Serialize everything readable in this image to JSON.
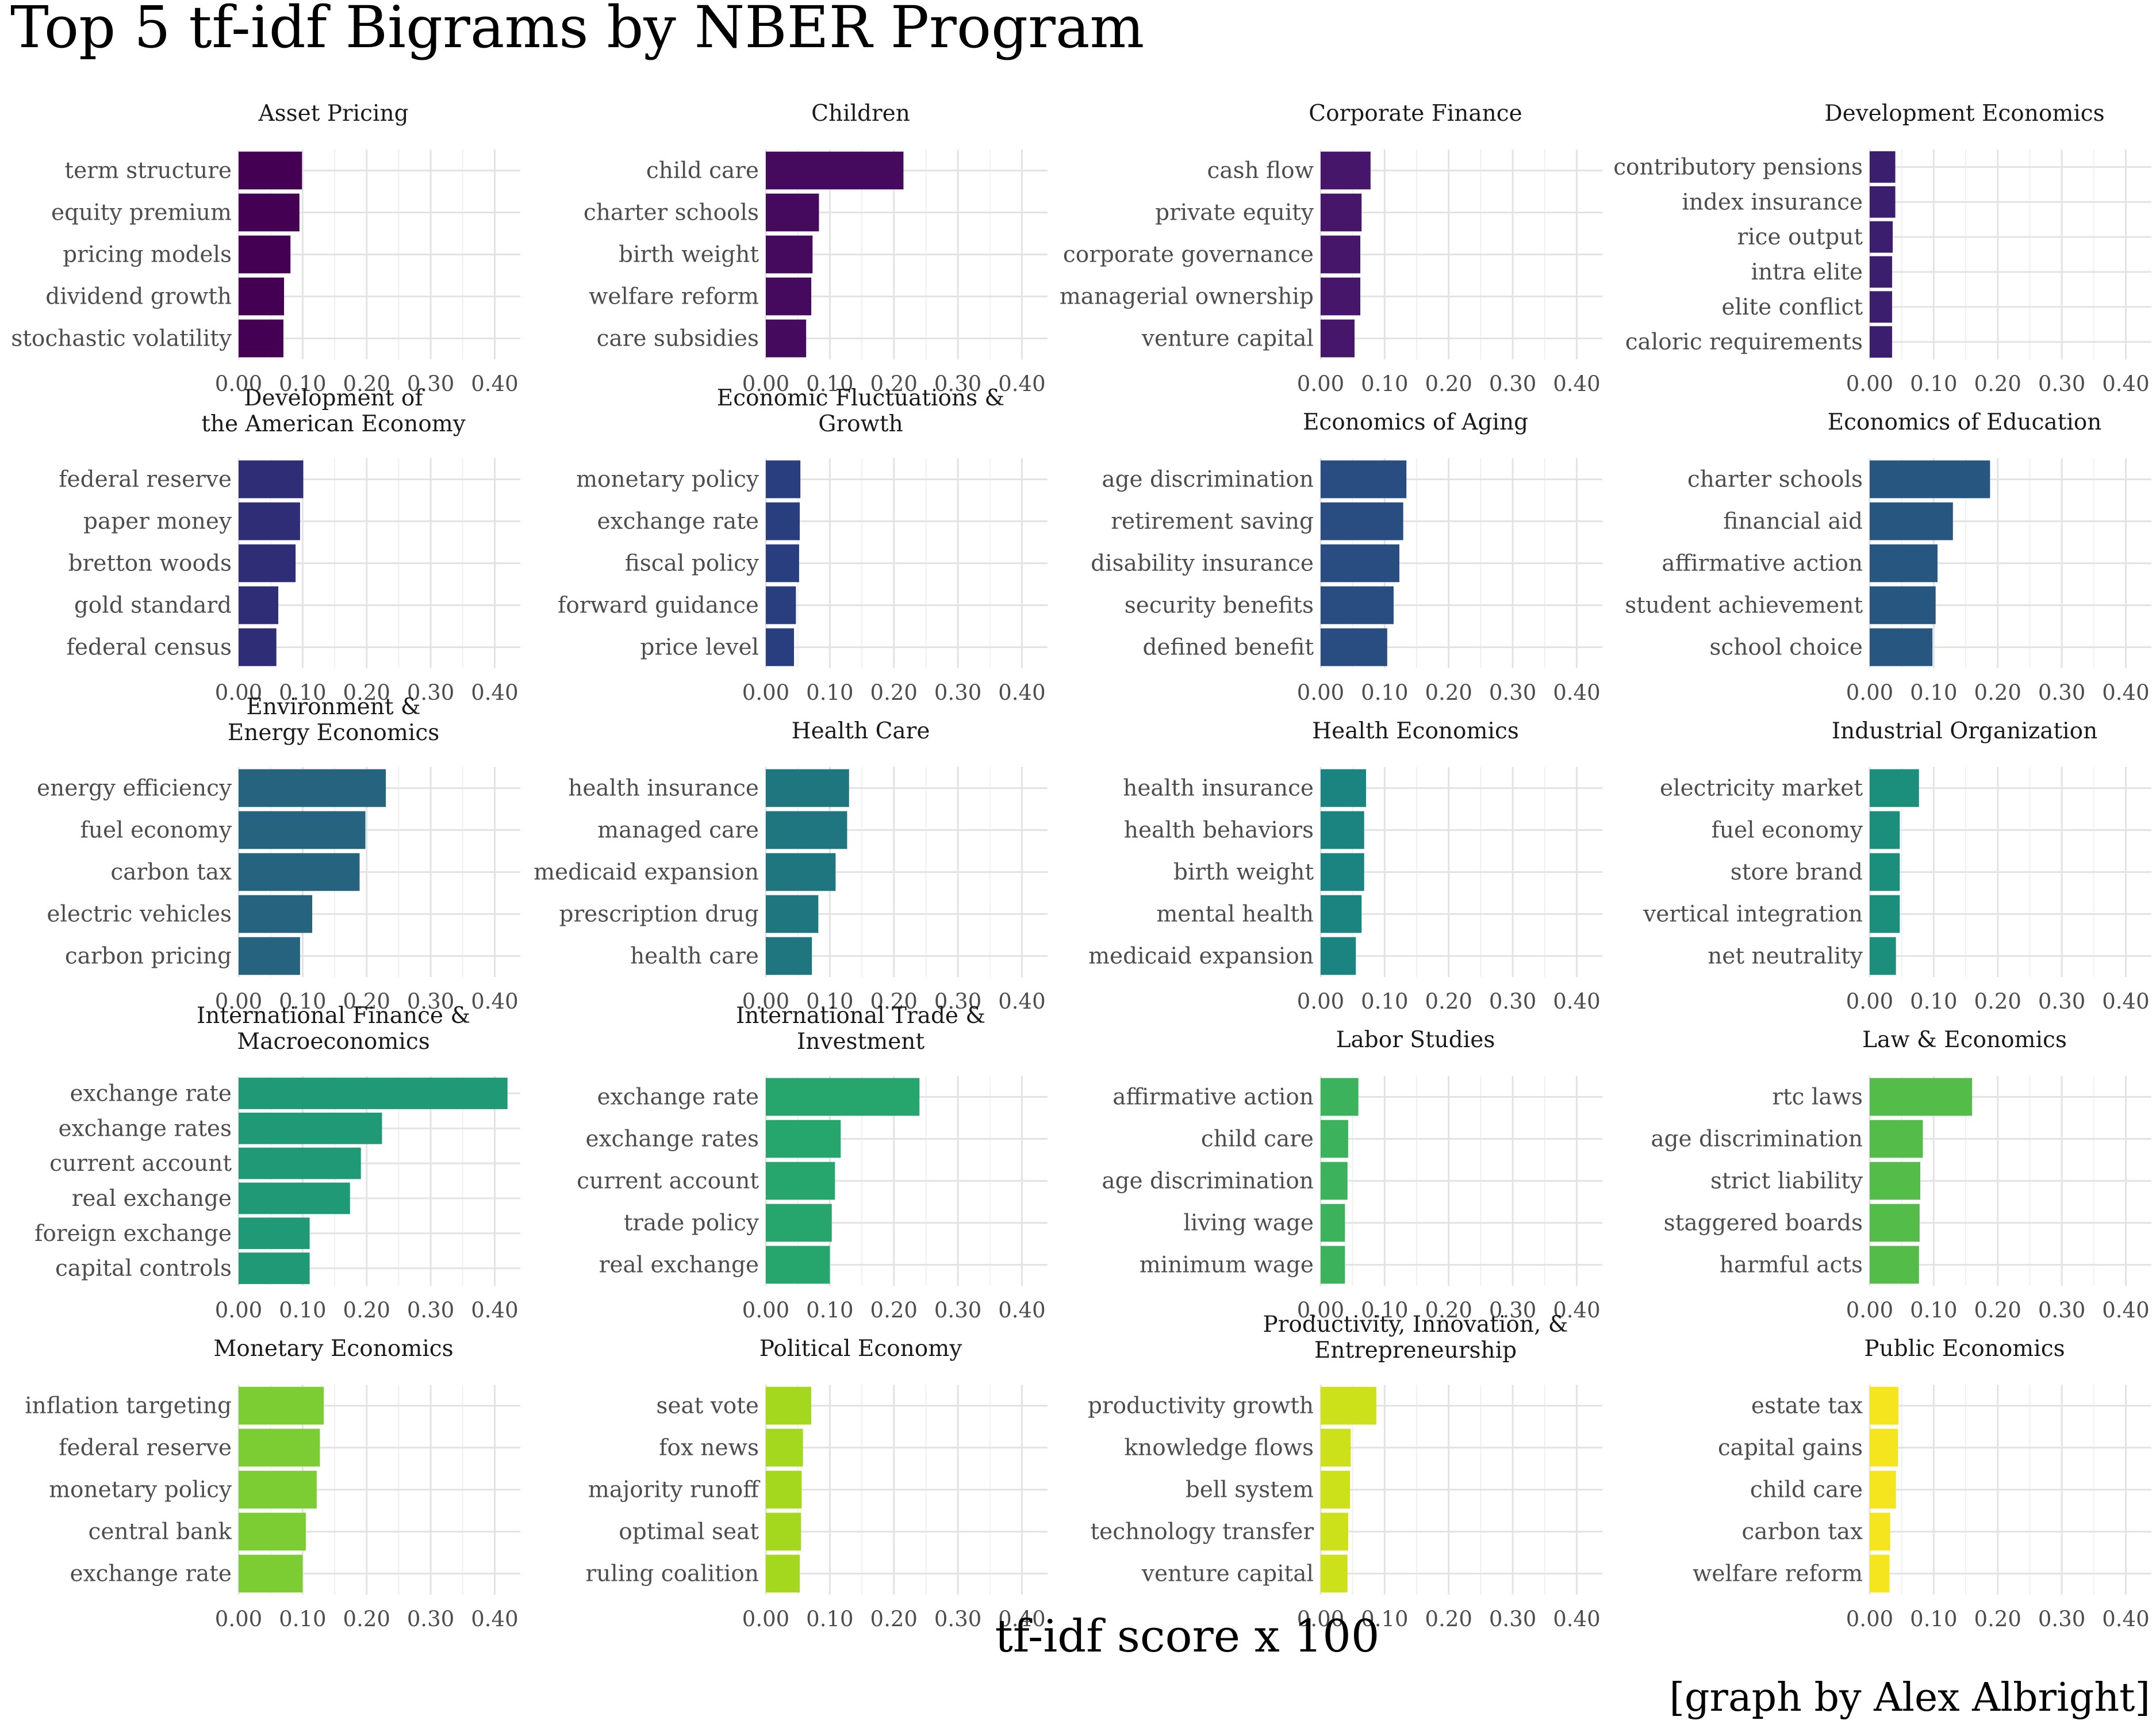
{
  "title": "Top 5 tf-idf Bigrams by NBER Program",
  "xlabel": "tf-idf score x 100",
  "credit": "[graph by Alex Albright]",
  "chart_data": {
    "type": "bar",
    "orientation": "horizontal",
    "facets": "4 columns x 5 rows",
    "xlim": [
      0,
      0.44
    ],
    "x_ticks": [
      "0.00",
      "0.10",
      "0.20",
      "0.30",
      "0.40"
    ],
    "grid": true,
    "panels": [
      {
        "title": [
          "Asset Pricing"
        ],
        "color": "#440154",
        "categories": [
          "term structure",
          "equity premium",
          "pricing models",
          "dividend growth",
          "stochastic volatility"
        ],
        "values": [
          0.099,
          0.095,
          0.081,
          0.071,
          0.07
        ]
      },
      {
        "title": [
          "Children"
        ],
        "color": "#450a5e",
        "categories": [
          "child care",
          "charter schools",
          "birth weight",
          "welfare reform",
          "care subsidies"
        ],
        "values": [
          0.215,
          0.083,
          0.073,
          0.071,
          0.063
        ]
      },
      {
        "title": [
          "Corporate Finance"
        ],
        "color": "#46166b",
        "categories": [
          "cash flow",
          "private equity",
          "corporate governance",
          "managerial ownership",
          "venture capital"
        ],
        "values": [
          0.078,
          0.064,
          0.062,
          0.062,
          0.053
        ]
      },
      {
        "title": [
          "Development Economics"
        ],
        "color": "#3b1f6e",
        "categories": [
          "contributory pensions",
          "index insurance",
          "rice output",
          "intra elite",
          "elite conflict",
          "caloric requirements"
        ],
        "values": [
          0.04,
          0.04,
          0.036,
          0.035,
          0.035,
          0.035
        ]
      },
      {
        "title": [
          "Development of",
          "the American Economy"
        ],
        "color": "#2f2d75",
        "categories": [
          "federal reserve",
          "paper money",
          "bretton woods",
          "gold standard",
          "federal census"
        ],
        "values": [
          0.101,
          0.096,
          0.089,
          0.062,
          0.059
        ]
      },
      {
        "title": [
          "Economic Fluctuations &",
          "Growth"
        ],
        "color": "#283e7f",
        "categories": [
          "monetary policy",
          "exchange rate",
          "fiscal policy",
          "forward guidance",
          "price level"
        ],
        "values": [
          0.054,
          0.053,
          0.052,
          0.047,
          0.044
        ]
      },
      {
        "title": [
          "Economics of Aging"
        ],
        "color": "#2a4d81",
        "categories": [
          "age discrimination",
          "retirement saving",
          "disability insurance",
          "security benefits",
          "defined benefit"
        ],
        "values": [
          0.134,
          0.129,
          0.123,
          0.114,
          0.104
        ]
      },
      {
        "title": [
          "Economics of Education"
        ],
        "color": "#275680",
        "categories": [
          "charter schools",
          "financial aid",
          "affirmative action",
          "student achievement",
          "school choice"
        ],
        "values": [
          0.188,
          0.13,
          0.106,
          0.103,
          0.098
        ]
      },
      {
        "title": [
          "Environment &",
          "Energy Economics"
        ],
        "color": "#25637e",
        "categories": [
          "energy efficiency",
          "fuel economy",
          "carbon tax",
          "electric vehicles",
          "carbon pricing"
        ],
        "values": [
          0.23,
          0.198,
          0.189,
          0.115,
          0.096
        ]
      },
      {
        "title": [
          "Health Care"
        ],
        "color": "#1f767f",
        "categories": [
          "health insurance",
          "managed care",
          "medicaid expansion",
          "prescription drug",
          "health care"
        ],
        "values": [
          0.13,
          0.127,
          0.109,
          0.082,
          0.072
        ]
      },
      {
        "title": [
          "Health Economics"
        ],
        "color": "#1c8480",
        "categories": [
          "health insurance",
          "health behaviors",
          "birth weight",
          "mental health",
          "medicaid expansion"
        ],
        "values": [
          0.071,
          0.068,
          0.068,
          0.064,
          0.055
        ]
      },
      {
        "title": [
          "Industrial Organization"
        ],
        "color": "#1b8e7c",
        "categories": [
          "electricity market",
          "fuel economy",
          "store brand",
          "vertical integration",
          "net neutrality"
        ],
        "values": [
          0.077,
          0.047,
          0.047,
          0.047,
          0.041
        ]
      },
      {
        "title": [
          "International Finance &",
          "Macroeconomics"
        ],
        "color": "#209a76",
        "categories": [
          "exchange rate",
          "exchange rates",
          "current account",
          "real exchange",
          "foreign exchange",
          "capital controls"
        ],
        "values": [
          0.42,
          0.224,
          0.191,
          0.174,
          0.111,
          0.111
        ]
      },
      {
        "title": [
          "International Trade &",
          "Investment"
        ],
        "color": "#26a56c",
        "categories": [
          "exchange rate",
          "exchange rates",
          "current account",
          "trade policy",
          "real exchange"
        ],
        "values": [
          0.24,
          0.117,
          0.108,
          0.103,
          0.1
        ]
      },
      {
        "title": [
          "Labor Studies"
        ],
        "color": "#3cb25d",
        "categories": [
          "affirmative action",
          "child care",
          "age discrimination",
          "living wage",
          "minimum wage"
        ],
        "values": [
          0.059,
          0.043,
          0.042,
          0.038,
          0.038
        ]
      },
      {
        "title": [
          "Law & Economics"
        ],
        "color": "#54bd4a",
        "categories": [
          "rtc laws",
          "age discrimination",
          "strict liability",
          "staggered boards",
          "harmful acts"
        ],
        "values": [
          0.16,
          0.083,
          0.079,
          0.078,
          0.077
        ]
      },
      {
        "title": [
          "Monetary Economics"
        ],
        "color": "#7ccc33",
        "categories": [
          "inflation targeting",
          "federal reserve",
          "monetary policy",
          "central bank",
          "exchange rate"
        ],
        "values": [
          0.133,
          0.127,
          0.122,
          0.105,
          0.1
        ]
      },
      {
        "title": [
          "Political Economy"
        ],
        "color": "#a4d81f",
        "categories": [
          "seat vote",
          "fox news",
          "majority runoff",
          "optimal seat",
          "ruling coalition"
        ],
        "values": [
          0.071,
          0.058,
          0.056,
          0.055,
          0.053
        ]
      },
      {
        "title": [
          "Productivity, Innovation, &",
          "Entrepreneurship"
        ],
        "color": "#cde11a",
        "categories": [
          "productivity growth",
          "knowledge flows",
          "bell system",
          "technology transfer",
          "venture capital"
        ],
        "values": [
          0.087,
          0.047,
          0.046,
          0.043,
          0.042
        ]
      },
      {
        "title": [
          "Public Economics"
        ],
        "color": "#f4e51f",
        "categories": [
          "estate tax",
          "capital gains",
          "child care",
          "carbon tax",
          "welfare reform"
        ],
        "values": [
          0.045,
          0.044,
          0.041,
          0.032,
          0.031
        ]
      }
    ]
  }
}
